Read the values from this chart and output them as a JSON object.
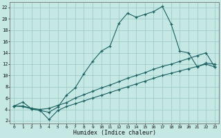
{
  "xlabel": "Humidex (Indice chaleur)",
  "background_color": "#c5e8e5",
  "grid_color": "#a0ccc8",
  "line_color": "#1a6060",
  "xlim": [
    -0.5,
    23.5
  ],
  "ylim": [
    1.5,
    23
  ],
  "xticks": [
    0,
    1,
    2,
    3,
    4,
    5,
    6,
    7,
    8,
    9,
    10,
    11,
    12,
    13,
    14,
    15,
    16,
    17,
    18,
    19,
    20,
    21,
    22,
    23
  ],
  "yticks": [
    2,
    4,
    6,
    8,
    10,
    12,
    14,
    16,
    18,
    20,
    22
  ],
  "line1_x": [
    0,
    1,
    2,
    3,
    4,
    5,
    6,
    7,
    8,
    9,
    10,
    11,
    12,
    13,
    14,
    15,
    16,
    17,
    18,
    19,
    20,
    21,
    22,
    23
  ],
  "line1_y": [
    4.6,
    5.3,
    4.1,
    3.8,
    3.5,
    4.4,
    6.5,
    7.8,
    10.3,
    12.5,
    14.3,
    15.2,
    19.2,
    21.0,
    20.3,
    20.8,
    21.3,
    22.2,
    19.1,
    14.3,
    14.0,
    11.5,
    12.2,
    12.0
  ],
  "line2_x": [
    0,
    1,
    2,
    3,
    4,
    5,
    6,
    7,
    8,
    9,
    10,
    11,
    12,
    13,
    14,
    15,
    16,
    17,
    18,
    19,
    20,
    21,
    22,
    23
  ],
  "line2_y": [
    4.6,
    4.6,
    4.2,
    4.0,
    4.2,
    4.7,
    5.2,
    6.0,
    6.6,
    7.2,
    7.8,
    8.3,
    8.9,
    9.5,
    10.0,
    10.5,
    11.1,
    11.6,
    12.0,
    12.5,
    13.0,
    13.5,
    14.0,
    11.5
  ],
  "line3_x": [
    0,
    1,
    2,
    3,
    4,
    5,
    6,
    7,
    8,
    9,
    10,
    11,
    12,
    13,
    14,
    15,
    16,
    17,
    18,
    19,
    20,
    21,
    22,
    23
  ],
  "line3_y": [
    4.6,
    4.5,
    4.1,
    3.8,
    2.2,
    3.8,
    4.5,
    5.0,
    5.5,
    6.0,
    6.5,
    7.0,
    7.5,
    8.0,
    8.5,
    9.0,
    9.5,
    10.0,
    10.4,
    10.8,
    11.2,
    11.6,
    12.0,
    11.5
  ]
}
